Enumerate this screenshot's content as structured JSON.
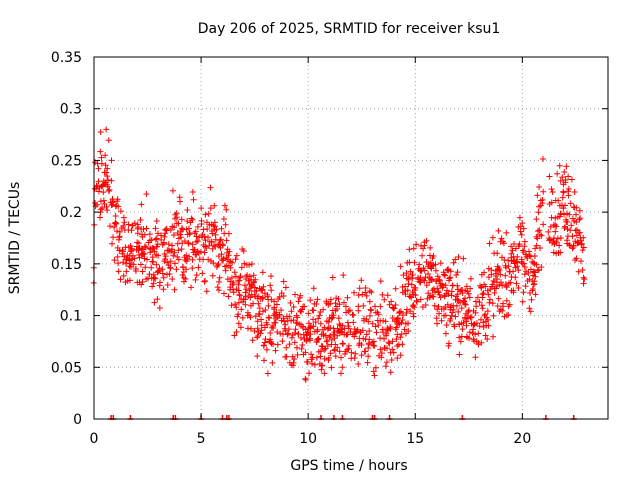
{
  "chart_data": {
    "type": "scatter",
    "title": "Day 206 of 2025, SRMTID for receiver ksu1",
    "xlabel": "GPS time / hours",
    "ylabel": "SRMTID / TECUs",
    "xlim": [
      0,
      24
    ],
    "ylim": [
      0,
      0.35
    ],
    "x_ticks": [
      0,
      5,
      10,
      15,
      20
    ],
    "x_tick_labels": [
      "0",
      "5",
      "10",
      "15",
      "20"
    ],
    "y_ticks": [
      0,
      0.05,
      0.1,
      0.15,
      0.2,
      0.25,
      0.3,
      0.35
    ],
    "y_tick_labels": [
      "0",
      "0.05",
      "0.1",
      "0.15",
      "0.2",
      "0.25",
      "0.3",
      "0.35"
    ],
    "grid": true,
    "series": [
      {
        "name": "SRMTID",
        "color": "#ff0000",
        "marker": "plus",
        "trend": {
          "x": [
            0,
            0.5,
            1,
            1.5,
            2,
            3,
            4,
            5,
            5.5,
            6,
            6.5,
            7,
            8,
            9,
            10,
            10.5,
            11,
            12,
            13,
            13.5,
            14,
            15,
            15.5,
            16,
            17,
            18,
            19,
            19.5,
            20,
            20.5,
            21,
            21.5,
            22,
            22.5,
            22.9
          ],
          "y": [
            0.21,
            0.24,
            0.19,
            0.16,
            0.17,
            0.15,
            0.17,
            0.17,
            0.18,
            0.16,
            0.13,
            0.115,
            0.1,
            0.09,
            0.08,
            0.075,
            0.085,
            0.09,
            0.085,
            0.08,
            0.09,
            0.13,
            0.15,
            0.13,
            0.11,
            0.1,
            0.14,
            0.15,
            0.15,
            0.14,
            0.21,
            0.2,
            0.21,
            0.19,
            0.15
          ]
        },
        "spread": 0.045,
        "point_spacing_hours": 0.03,
        "x_range": [
          0,
          22.9
        ],
        "gap_hours": [
          [
            21.0,
            21.2
          ]
        ]
      }
    ],
    "zero_markers_x": [
      0.8,
      0.9,
      1.7,
      3.7,
      3.8,
      5.0,
      6.0,
      6.2,
      6.3,
      10.6,
      11.2,
      11.6,
      13.0,
      13.1,
      13.8,
      17.2,
      21.1,
      22.4
    ]
  }
}
